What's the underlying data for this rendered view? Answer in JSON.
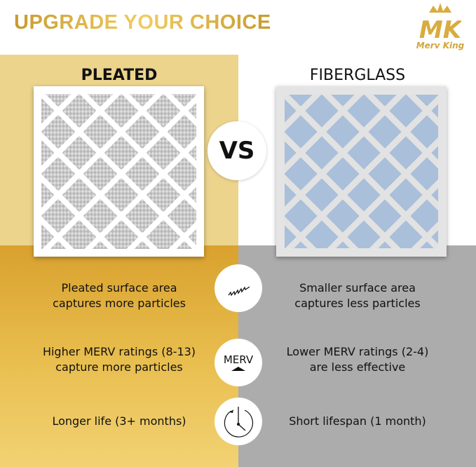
{
  "title": "UPGRADE YOUR CHOICE",
  "logo": {
    "monogram": "MK",
    "brand": "Merv King"
  },
  "left": {
    "heading": "PLEATED",
    "features": [
      "Pleated surface area\ncaptures more particles",
      "Higher MERV ratings (8-13)\ncapture more particles",
      "Longer life (3+ months)"
    ]
  },
  "right": {
    "heading": "FIBERGLASS",
    "features": [
      "Smaller surface area\ncaptures less particles",
      "Lower MERV ratings (2-4)\nare less effective",
      "Short lifespan (1 month)"
    ]
  },
  "vs_label": "VS",
  "icons": [
    {
      "name": "zigzag-pleat-icon"
    },
    {
      "name": "merv-rating-icon",
      "label": "MERV"
    },
    {
      "name": "clock-icon"
    }
  ],
  "colors": {
    "gold_light": "#ecd48d",
    "gold": "#d9a12e",
    "gray": "#acacac",
    "fiberglass_blue": "#a9bfda"
  }
}
